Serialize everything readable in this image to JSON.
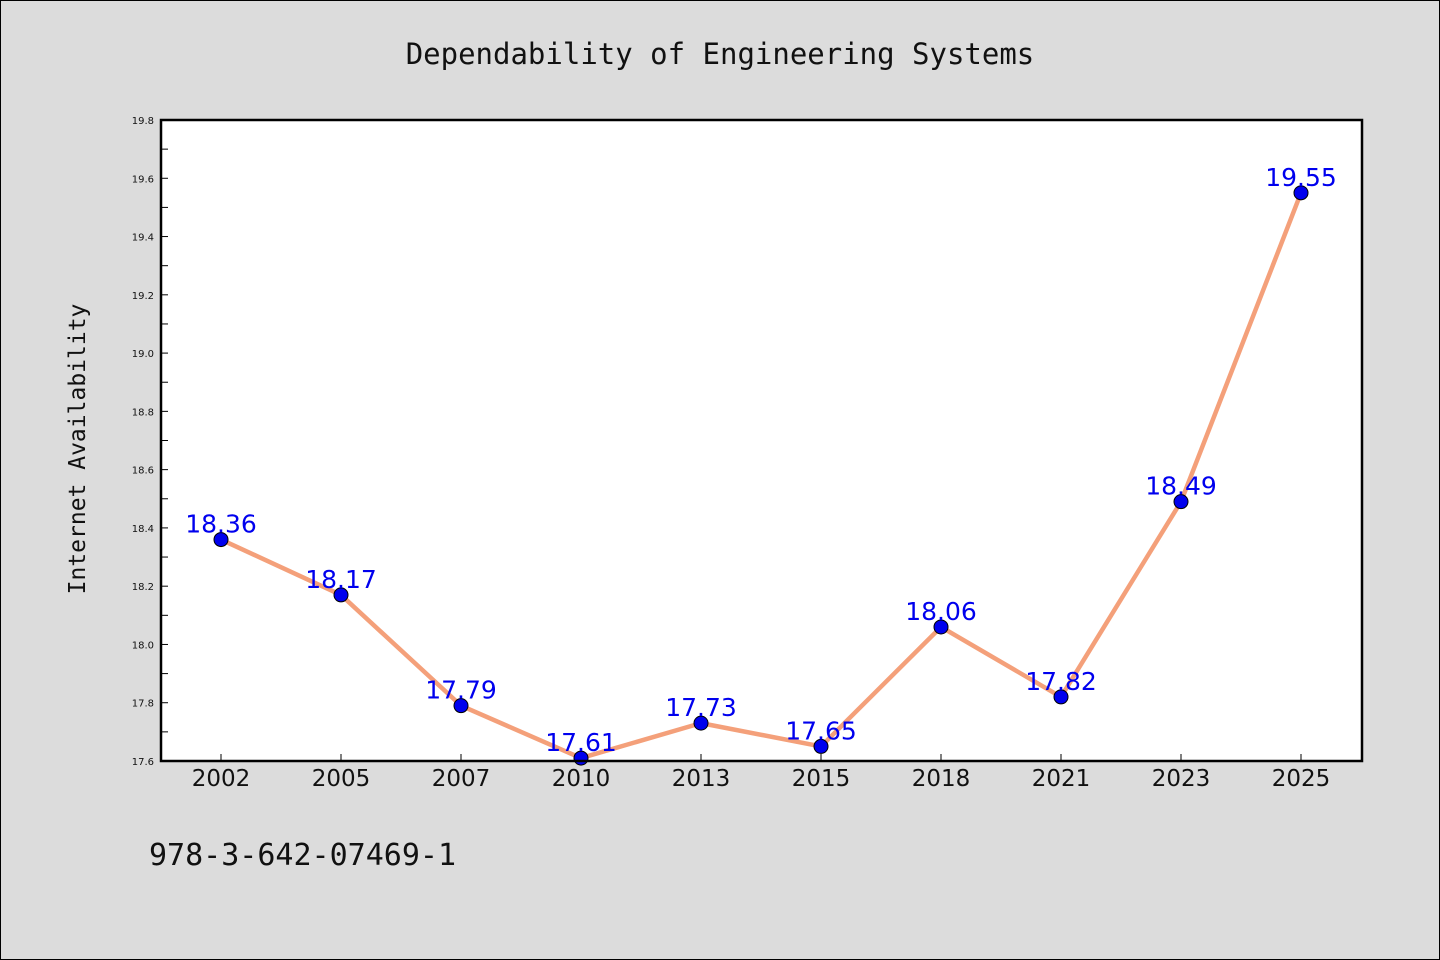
{
  "chart_data": {
    "type": "line",
    "title": "Dependability of Engineering Systems",
    "xlabel": "",
    "ylabel": "Internet Availability",
    "categories": [
      "2002",
      "2005",
      "2007",
      "2010",
      "2013",
      "2015",
      "2018",
      "2021",
      "2023",
      "2025"
    ],
    "values": [
      18.36,
      18.17,
      17.79,
      17.61,
      17.73,
      17.65,
      18.06,
      17.82,
      18.49,
      19.55
    ],
    "data_labels": [
      "18.36",
      "18.17",
      "17.79",
      "17.61",
      "17.73",
      "17.65",
      "18.06",
      "17.82",
      "18.49",
      "19.55"
    ],
    "ylim": [
      17.6,
      19.8
    ],
    "yticks": [
      "17.6",
      "17.8",
      "18.0",
      "18.2",
      "18.4",
      "18.6",
      "18.8",
      "19.0",
      "19.2",
      "19.4",
      "19.6",
      "19.8"
    ],
    "grid": false,
    "legend": "none",
    "line_color": "#f4a07a",
    "marker_color": "#0000ee",
    "label_color": "#0000ee",
    "plot_background": "#ffffff",
    "page_background": "#dcdcdc"
  },
  "footer": {
    "isbn": "978-3-642-07469-1"
  }
}
